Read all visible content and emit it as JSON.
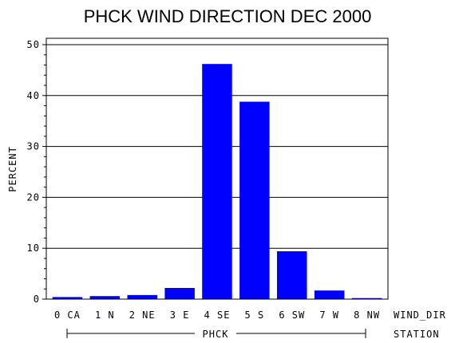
{
  "chart_data": {
    "type": "bar",
    "title": "PHCK WIND DIRECTION DEC 2000",
    "ylabel": "PERCENT",
    "xlabel": "WIND_DIR",
    "group_axis_label": "STATION",
    "group": "PHCK",
    "categories": [
      "0 CA",
      "1 N",
      "2 NE",
      "3 E",
      "4 SE",
      "5 S",
      "6 SW",
      "7 W",
      "8 NW"
    ],
    "values": [
      0.4,
      0.6,
      0.8,
      2.2,
      46.2,
      38.8,
      9.4,
      1.7,
      0.2
    ],
    "ylim": [
      0,
      50
    ],
    "yticks": [
      "0",
      "10",
      "20",
      "30",
      "40",
      "50"
    ],
    "grid": true,
    "bar_color": "#0000ff"
  }
}
